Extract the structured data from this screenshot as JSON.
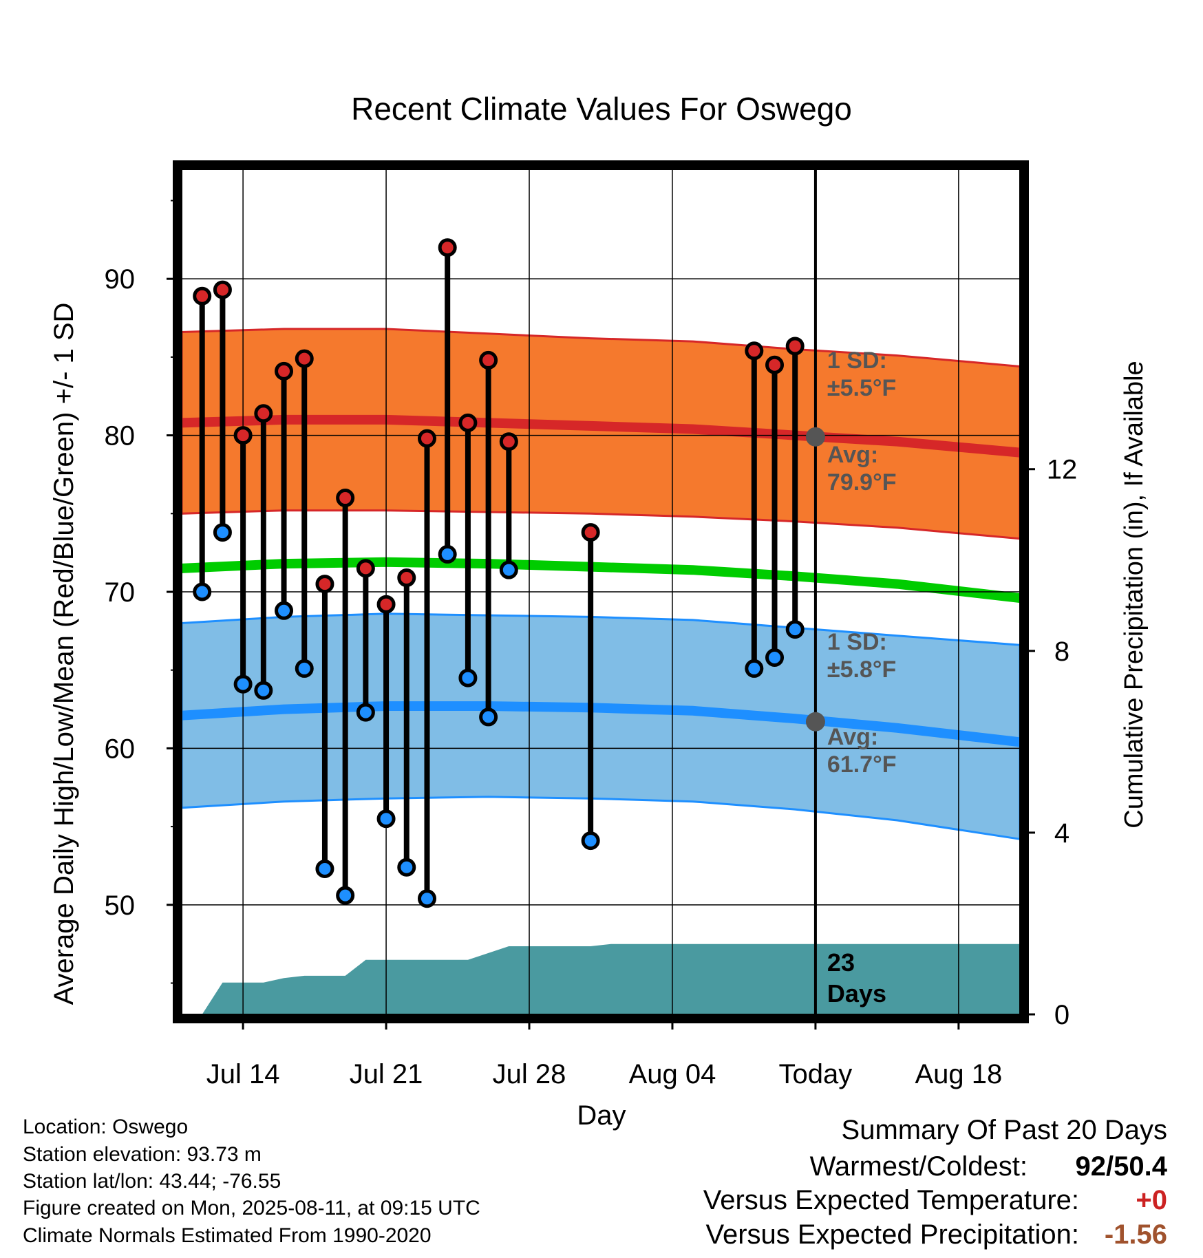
{
  "chart_data": {
    "type": "line",
    "title": "Recent Climate Values For Oswego",
    "xlabel": "Day",
    "ylabel": "Average Daily High/Low/Mean (Red/Blue/Green) +/- 1 SD",
    "ylabel_right": "Cumulative Precipitation (in), If Available",
    "x_ticks": [
      "Jul 14",
      "Jul 21",
      "Jul 28",
      "Aug 04",
      "Today",
      "Aug 18"
    ],
    "x_tick_dates": [
      "2025-07-14",
      "2025-07-21",
      "2025-07-28",
      "2025-08-04",
      "2025-08-11",
      "2025-08-18"
    ],
    "xlim": [
      "2025-07-11",
      "2025-08-21"
    ],
    "ylim": [
      43,
      97
    ],
    "y_ticks": [
      50,
      60,
      70,
      80,
      90
    ],
    "y2lim": [
      0,
      18.6
    ],
    "y2_ticks": [
      0,
      4,
      8,
      12
    ],
    "today": "2025-08-11",
    "colors": {
      "high_band": "#f5792d",
      "high_line": "#d62728",
      "low_band": "#80bde6",
      "low_line": "#1e8fff",
      "mean_line": "#00cc00",
      "precip": "#4a9aa0",
      "annot": "#555555"
    },
    "normals": {
      "dates": [
        "2025-07-11",
        "2025-07-16",
        "2025-07-21",
        "2025-07-26",
        "2025-07-31",
        "2025-08-05",
        "2025-08-10",
        "2025-08-15",
        "2025-08-21"
      ],
      "high_avg": [
        80.8,
        81.0,
        81.0,
        80.8,
        80.6,
        80.4,
        80.0,
        79.6,
        78.9
      ],
      "high_sd": [
        5.8,
        5.8,
        5.8,
        5.7,
        5.6,
        5.6,
        5.5,
        5.5,
        5.5
      ],
      "low_avg": [
        62.1,
        62.5,
        62.7,
        62.7,
        62.6,
        62.4,
        61.9,
        61.3,
        60.4
      ],
      "low_sd": [
        5.9,
        5.9,
        5.9,
        5.8,
        5.8,
        5.8,
        5.8,
        5.9,
        6.2
      ],
      "mean_avg": [
        71.5,
        71.8,
        71.9,
        71.8,
        71.6,
        71.4,
        71.0,
        70.5,
        69.6
      ]
    },
    "observations": [
      {
        "date": "2025-07-12",
        "high": 88.9,
        "low": 70.0
      },
      {
        "date": "2025-07-13",
        "high": 89.3,
        "low": 73.8
      },
      {
        "date": "2025-07-14",
        "high": 80.0,
        "low": 64.1
      },
      {
        "date": "2025-07-15",
        "high": 81.4,
        "low": 63.7
      },
      {
        "date": "2025-07-16",
        "high": 84.1,
        "low": 68.8
      },
      {
        "date": "2025-07-17",
        "high": 84.9,
        "low": 65.1
      },
      {
        "date": "2025-07-18",
        "high": 70.5,
        "low": 52.3
      },
      {
        "date": "2025-07-19",
        "high": 76.0,
        "low": 50.6
      },
      {
        "date": "2025-07-20",
        "high": 71.5,
        "low": 62.3
      },
      {
        "date": "2025-07-21",
        "high": 69.2,
        "low": 55.5
      },
      {
        "date": "2025-07-22",
        "high": 70.9,
        "low": 52.4
      },
      {
        "date": "2025-07-23",
        "high": 79.8,
        "low": 50.4
      },
      {
        "date": "2025-07-24",
        "high": 92.0,
        "low": 72.4
      },
      {
        "date": "2025-07-25",
        "high": 80.8,
        "low": 64.5
      },
      {
        "date": "2025-07-26",
        "high": 84.8,
        "low": 62.0
      },
      {
        "date": "2025-07-27",
        "high": 79.6,
        "low": 71.4
      },
      {
        "date": "2025-07-31",
        "high": 73.8,
        "low": 54.1
      },
      {
        "date": "2025-08-08",
        "high": 85.4,
        "low": 65.1
      },
      {
        "date": "2025-08-09",
        "high": 84.5,
        "low": 65.8
      },
      {
        "date": "2025-08-10",
        "high": 85.7,
        "low": 67.6
      }
    ],
    "precip": {
      "dates": [
        "2025-07-11",
        "2025-07-12",
        "2025-07-13",
        "2025-07-14",
        "2025-07-15",
        "2025-07-16",
        "2025-07-17",
        "2025-07-18",
        "2025-07-19",
        "2025-07-20",
        "2025-07-21",
        "2025-07-22",
        "2025-07-23",
        "2025-07-24",
        "2025-07-25",
        "2025-07-26",
        "2025-07-27",
        "2025-07-28",
        "2025-07-29",
        "2025-07-30",
        "2025-07-31",
        "2025-08-01",
        "2025-08-11",
        "2025-08-21"
      ],
      "values": [
        0,
        0,
        0.7,
        0.7,
        0.7,
        0.8,
        0.85,
        0.85,
        0.85,
        1.2,
        1.2,
        1.2,
        1.2,
        1.2,
        1.2,
        1.35,
        1.5,
        1.5,
        1.5,
        1.5,
        1.5,
        1.55,
        1.55,
        1.55
      ]
    },
    "annotations": {
      "high_sd": [
        "1 SD:",
        "±5.5°F"
      ],
      "high_avg": [
        "Avg:",
        "79.9°F"
      ],
      "low_sd": [
        "1 SD:",
        "±5.8°F"
      ],
      "low_avg": [
        "Avg:",
        "61.7°F"
      ],
      "high_avg_value": 79.9,
      "low_avg_value": 61.7,
      "days": [
        "23",
        "Days"
      ]
    }
  },
  "info": {
    "location": "Location: Oswego",
    "elevation": "Station elevation: 93.73 m",
    "latlon": "Station lat/lon: 43.44; -76.55",
    "created": "Figure created on Mon, 2025-08-11, at 09:15 UTC",
    "normals": "Climate Normals Estimated From 1990-2020"
  },
  "summary": {
    "title": "Summary Of Past 20 Days",
    "warm_cold_label": "Warmest/Coldest:",
    "warm_cold_value": "92/50.4",
    "temp_label": "Versus Expected Temperature:",
    "temp_value": "+0",
    "temp_color": "#cc2222",
    "precip_label": "Versus Expected Precipitation:",
    "precip_value": "-1.56",
    "precip_color": "#a0522d"
  }
}
